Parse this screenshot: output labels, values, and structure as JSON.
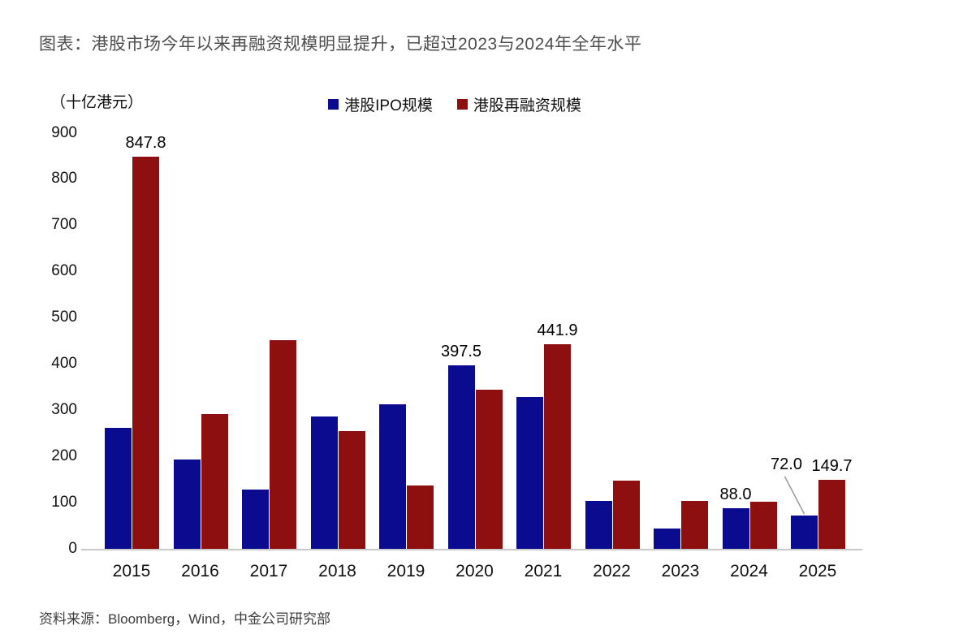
{
  "page": {
    "title": "图表：港股市场今年以来再融资规模明显提升，已超过2023与2024年全年水平"
  },
  "source": "资料来源：Bloomberg，Wind，中金公司研究部",
  "chart_data": {
    "type": "bar",
    "title": "港股市场今年以来再融资规模明显提升，已超过2023与2024年全年水平",
    "unit_label": "（十亿港元）",
    "categories": [
      "2015",
      "2016",
      "2017",
      "2018",
      "2019",
      "2020",
      "2021",
      "2022",
      "2023",
      "2024",
      "2025"
    ],
    "series": [
      {
        "name": "港股IPO规模",
        "color": "#0B0B8F",
        "values": [
          261,
          193,
          128,
          286,
          312,
          397.5,
          329,
          104,
          44,
          88,
          72
        ]
      },
      {
        "name": "港股再融资规模",
        "color": "#8E0F0F",
        "values": [
          847.8,
          291,
          451,
          254,
          137,
          345,
          441.9,
          147,
          104,
          102,
          149.7
        ]
      }
    ],
    "annotations": [
      {
        "year": "2015",
        "series": 1,
        "text": "847.8"
      },
      {
        "year": "2020",
        "series": 0,
        "text": "397.5"
      },
      {
        "year": "2021",
        "series": 1,
        "text": "441.9"
      },
      {
        "year": "2024",
        "series": 0,
        "text": "88.0"
      },
      {
        "year": "2025",
        "series": 0,
        "text": "72.0",
        "callout": true
      },
      {
        "year": "2025",
        "series": 1,
        "text": "149.7"
      }
    ],
    "ylim": [
      0,
      900
    ],
    "ytick_step": 100,
    "xlabel": "",
    "ylabel": "（十亿港元）",
    "legend_position": "top-center",
    "grid": false
  }
}
